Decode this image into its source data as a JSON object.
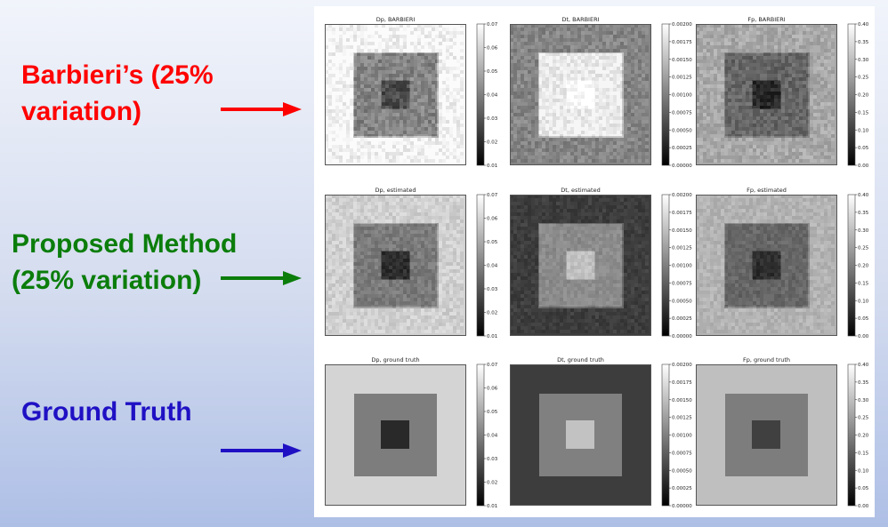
{
  "labels": [
    {
      "lines": [
        "Barbieri’s (25%",
        "variation)"
      ],
      "color": "#ff0000"
    },
    {
      "lines": [
        "Proposed Method",
        "(25% variation)"
      ],
      "color": "#0b7d0b"
    },
    {
      "lines": [
        "Ground Truth"
      ],
      "color": "#1f10c4"
    }
  ],
  "colors": {
    "row_barbieri": "#ff0000",
    "row_proposed": "#0b7d0b",
    "row_ground_truth": "#1f10c4"
  },
  "colorbar_ticks": {
    "Dp": [
      "0.07",
      "0.06",
      "0.05",
      "0.04",
      "0.03",
      "0.02",
      "0.01"
    ],
    "Dt": [
      "0.00200",
      "0.00175",
      "0.00150",
      "0.00125",
      "0.00100",
      "0.00075",
      "0.00050",
      "0.00025",
      "0.00000"
    ],
    "Fp": [
      "0.40",
      "0.35",
      "0.30",
      "0.25",
      "0.20",
      "0.15",
      "0.10",
      "0.05",
      "0.00"
    ]
  },
  "panels": [
    {
      "title": "Dp, BARBIERI",
      "param": "Dp",
      "levels": {
        "outer": 0.97,
        "middle": 0.52,
        "inner": 0.3
      },
      "noise": 0.18
    },
    {
      "title": "Dt, BARBIERI",
      "param": "Dt",
      "levels": {
        "outer": 0.52,
        "middle": 0.92,
        "inner": 1.0
      },
      "noise": 0.14
    },
    {
      "title": "Fp, BARBIERI",
      "param": "Fp",
      "levels": {
        "outer": 0.66,
        "middle": 0.4,
        "inner": 0.16
      },
      "noise": 0.14
    },
    {
      "title": "Dp, estimated",
      "param": "Dp",
      "levels": {
        "outer": 0.82,
        "middle": 0.48,
        "inner": 0.18
      },
      "noise": 0.11
    },
    {
      "title": "Dt, estimated",
      "param": "Dt",
      "levels": {
        "outer": 0.24,
        "middle": 0.55,
        "inner": 0.76
      },
      "noise": 0.08
    },
    {
      "title": "Fp, estimated",
      "param": "Fp",
      "levels": {
        "outer": 0.7,
        "middle": 0.4,
        "inner": 0.19
      },
      "noise": 0.09
    },
    {
      "title": "Dp, ground truth",
      "param": "Dp",
      "levels": {
        "outer": 0.83,
        "middle": 0.49,
        "inner": 0.16
      },
      "noise": 0
    },
    {
      "title": "Dt, ground truth",
      "param": "Dt",
      "levels": {
        "outer": 0.24,
        "middle": 0.5,
        "inner": 0.76
      },
      "noise": 0
    },
    {
      "title": "Fp, ground truth",
      "param": "Fp",
      "levels": {
        "outer": 0.75,
        "middle": 0.49,
        "inner": 0.25
      },
      "noise": 0
    }
  ]
}
